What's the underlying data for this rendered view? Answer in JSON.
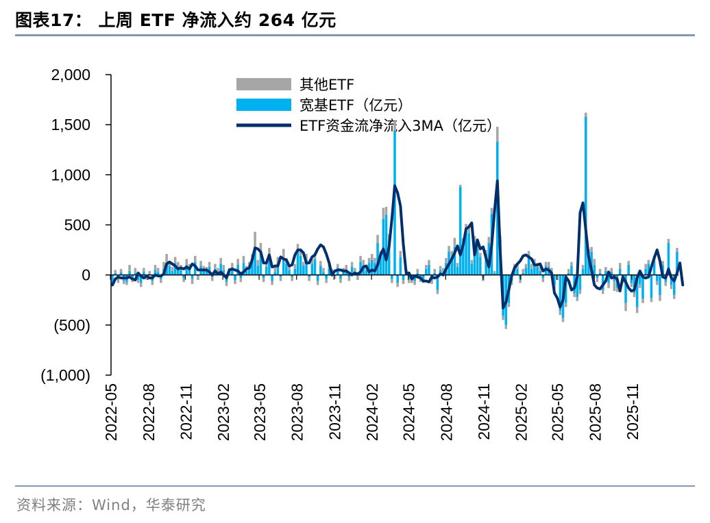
{
  "header": {
    "title": "图表17： 上周 ETF 净流入约 264 亿元"
  },
  "footer": {
    "source": "资料来源：Wind，华泰研究"
  },
  "colors": {
    "other_etf": "#a6a6a6",
    "broad_etf": "#00b0f0",
    "ma3": "#002f6c",
    "rule": "#8497b0"
  },
  "chart_data": {
    "type": "bar",
    "title": "上周 ETF 净流入约 264 亿元",
    "xlabel": "",
    "ylabel": "",
    "ylim": [
      -1000,
      2000
    ],
    "y_ticks": [
      2000,
      1500,
      1000,
      500,
      0,
      -500,
      -1000
    ],
    "y_tick_labels": [
      "2,000",
      "1,500",
      "1,000",
      "500",
      "0",
      "(500)",
      "(1,000)"
    ],
    "x_range": [
      "2022-05-06",
      "2025-11-21"
    ],
    "x_tick_labels": [
      "2022-05",
      "2022-08",
      "2022-11",
      "2023-02",
      "2023-05",
      "2023-08",
      "2023-11",
      "2024-02",
      "2024-05",
      "2024-08",
      "2024-11",
      "2025-02",
      "2025-05",
      "2025-08",
      "2025-11"
    ],
    "legend": [
      "其他ETF",
      "宽基ETF（亿元）",
      "ETF资金流净流入3MA（亿元）"
    ],
    "legend_position": "top-center",
    "series": [
      {
        "name": "宽基ETF（亿元）",
        "type": "bar",
        "values": [
          -80,
          20,
          -40,
          30,
          -60,
          -70,
          40,
          -30,
          20,
          -50,
          -80,
          30,
          -20,
          10,
          -60,
          50,
          30,
          -40,
          60,
          110,
          90,
          40,
          120,
          70,
          50,
          -30,
          100,
          60,
          -40,
          130,
          -10,
          90,
          50,
          40,
          80,
          -20,
          60,
          30,
          110,
          50,
          -70,
          30,
          60,
          -50,
          100,
          -30,
          120,
          40,
          70,
          140,
          260,
          90,
          220,
          -30,
          80,
          210,
          -60,
          30,
          120,
          -20,
          170,
          110,
          50,
          -20,
          60,
          240,
          190,
          90,
          150,
          -20,
          110,
          160,
          -60,
          90,
          30,
          -40,
          60,
          20,
          -10,
          70,
          -40,
          30,
          50,
          -20,
          80,
          30,
          -10,
          130,
          100,
          50,
          120,
          150,
          120,
          320,
          180,
          560,
          600,
          320,
          -40,
          1440,
          -80,
          180,
          -50,
          20,
          -40,
          -40,
          -60,
          20,
          -30,
          -40,
          60,
          100,
          -50,
          20,
          -150,
          50,
          30,
          120,
          230,
          180,
          280,
          80,
          880,
          310,
          450,
          420,
          110,
          330,
          260,
          180,
          -20,
          210,
          320,
          610,
          20,
          1330,
          350,
          -410,
          -500,
          -280,
          -60,
          80,
          60,
          -40,
          20,
          70,
          200,
          60,
          110,
          80,
          40,
          -30,
          90,
          80,
          30,
          -100,
          -10,
          -360,
          -430,
          -280,
          20,
          90,
          -180,
          -220,
          -150,
          60,
          1580,
          160,
          230,
          100,
          -30,
          20,
          -150,
          40,
          -80,
          30,
          -60,
          -130,
          60,
          -40,
          -280,
          100,
          -80,
          -180,
          -320,
          -90,
          -240,
          60,
          110,
          -230,
          140,
          -60,
          -200,
          100,
          -70,
          320,
          -100,
          -200,
          230
        ],
        "color": "#00b0f0"
      },
      {
        "name": "其他ETF",
        "type": "bar",
        "values": [
          30,
          30,
          40,
          30,
          30,
          30,
          60,
          40,
          50,
          30,
          40,
          40,
          30,
          30,
          40,
          50,
          40,
          40,
          70,
          100,
          50,
          40,
          60,
          60,
          50,
          40,
          60,
          50,
          50,
          60,
          40,
          50,
          40,
          40,
          50,
          40,
          50,
          40,
          60,
          50,
          40,
          40,
          60,
          40,
          60,
          40,
          70,
          50,
          60,
          70,
          170,
          60,
          100,
          40,
          50,
          60,
          40,
          50,
          60,
          40,
          90,
          60,
          50,
          40,
          50,
          70,
          60,
          40,
          60,
          40,
          50,
          60,
          40,
          50,
          40,
          40,
          50,
          40,
          30,
          40,
          40,
          40,
          50,
          40,
          50,
          40,
          40,
          60,
          50,
          40,
          50,
          60,
          50,
          80,
          60,
          110,
          80,
          90,
          40,
          100,
          40,
          60,
          40,
          40,
          40,
          40,
          40,
          40,
          40,
          40,
          40,
          50,
          40,
          40,
          40,
          40,
          40,
          50,
          60,
          60,
          90,
          40,
          20,
          60,
          60,
          60,
          40,
          60,
          50,
          40,
          40,
          40,
          60,
          60,
          20,
          150,
          40,
          40,
          40,
          40,
          40,
          30,
          40,
          40,
          40,
          40,
          40,
          50,
          50,
          40,
          40,
          40,
          40,
          50,
          40,
          40,
          40,
          40,
          40,
          40,
          40,
          40,
          40,
          40,
          40,
          40,
          40,
          100,
          50,
          60,
          40,
          40,
          40,
          40,
          50,
          40,
          100,
          40,
          60,
          40,
          80,
          40,
          40,
          40,
          60,
          40,
          40,
          50,
          40,
          40,
          50,
          40,
          60,
          40,
          40,
          40,
          40,
          40,
          40,
          40,
          40,
          40,
          40,
          100,
          40
        ],
        "color": "#a6a6a6"
      },
      {
        "name": "ETF资金流净流入3MA（亿元）",
        "type": "line",
        "values": [
          -100,
          -40,
          -20,
          -30,
          -30,
          -30,
          -20,
          -40,
          -50,
          20,
          -10,
          -30,
          -10,
          -30,
          -30,
          0,
          -10,
          -10,
          10,
          110,
          130,
          110,
          90,
          60,
          70,
          60,
          80,
          60,
          110,
          90,
          50,
          50,
          50,
          50,
          30,
          0,
          40,
          10,
          30,
          0,
          -30,
          50,
          60,
          50,
          40,
          10,
          30,
          60,
          70,
          150,
          270,
          260,
          230,
          120,
          120,
          200,
          80,
          90,
          90,
          180,
          160,
          150,
          90,
          100,
          200,
          250,
          250,
          220,
          120,
          120,
          180,
          200,
          260,
          300,
          280,
          210,
          120,
          0,
          40,
          50,
          50,
          40,
          40,
          20,
          0,
          20,
          10,
          30,
          80,
          90,
          30,
          50,
          40,
          100,
          200,
          260,
          150,
          280,
          560,
          890,
          820,
          690,
          310,
          20,
          20,
          -40,
          -10,
          -20,
          -30,
          -60,
          -60,
          -70,
          -20,
          -30,
          -20,
          10,
          0,
          60,
          110,
          160,
          220,
          290,
          200,
          300,
          460,
          480,
          520,
          200,
          350,
          260,
          280,
          170,
          80,
          300,
          640,
          940,
          230,
          -330,
          -270,
          -150,
          -10,
          70,
          110,
          140,
          190,
          200,
          180,
          160,
          100,
          100,
          110,
          40,
          60,
          50,
          20,
          -180,
          -230,
          -320,
          -250,
          -20,
          -60,
          -150,
          -130,
          -20,
          620,
          720,
          450,
          180,
          50,
          -100,
          -130,
          -140,
          -100,
          -60,
          30,
          -30,
          -20,
          -40,
          -160,
          -20,
          -70,
          -130,
          -160,
          -150,
          -30,
          40,
          -20,
          -30,
          -20,
          80,
          170,
          250,
          140,
          -20,
          -30,
          60,
          -30,
          -60,
          20,
          120,
          -100
        ]
      }
    ]
  }
}
